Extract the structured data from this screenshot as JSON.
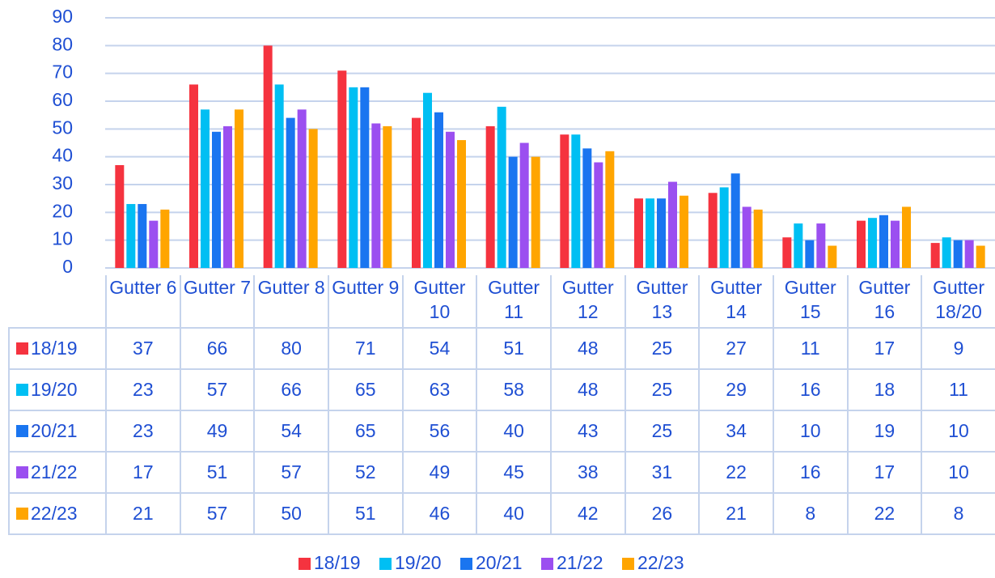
{
  "chart_data": {
    "type": "bar",
    "categories": [
      "Gutter 6",
      "Gutter 7",
      "Gutter 8",
      "Gutter 9",
      "Gutter 10",
      "Gutter 11",
      "Gutter 12",
      "Gutter 13",
      "Gutter 14",
      "Gutter 15",
      "Gutter 16",
      "Gutter 18/20"
    ],
    "series": [
      {
        "name": "18/19",
        "color": "#f5333f",
        "values": [
          37,
          66,
          80,
          71,
          54,
          51,
          48,
          25,
          27,
          11,
          17,
          9
        ]
      },
      {
        "name": "19/20",
        "color": "#00bff3",
        "values": [
          23,
          57,
          66,
          65,
          63,
          58,
          48,
          25,
          29,
          16,
          18,
          11
        ]
      },
      {
        "name": "20/21",
        "color": "#1a75f0",
        "values": [
          23,
          49,
          54,
          65,
          56,
          40,
          43,
          25,
          34,
          10,
          19,
          10
        ]
      },
      {
        "name": "21/22",
        "color": "#9b4ff0",
        "values": [
          17,
          51,
          57,
          52,
          49,
          45,
          38,
          31,
          22,
          16,
          17,
          10
        ]
      },
      {
        "name": "22/23",
        "color": "#ffa500",
        "values": [
          21,
          57,
          50,
          51,
          46,
          40,
          42,
          26,
          21,
          8,
          22,
          8
        ]
      }
    ],
    "ylim": [
      0,
      90
    ],
    "yticks": [
      0,
      10,
      20,
      30,
      40,
      50,
      60,
      70,
      80,
      90
    ],
    "grid": true,
    "data_table": true,
    "legend": "bottom"
  }
}
